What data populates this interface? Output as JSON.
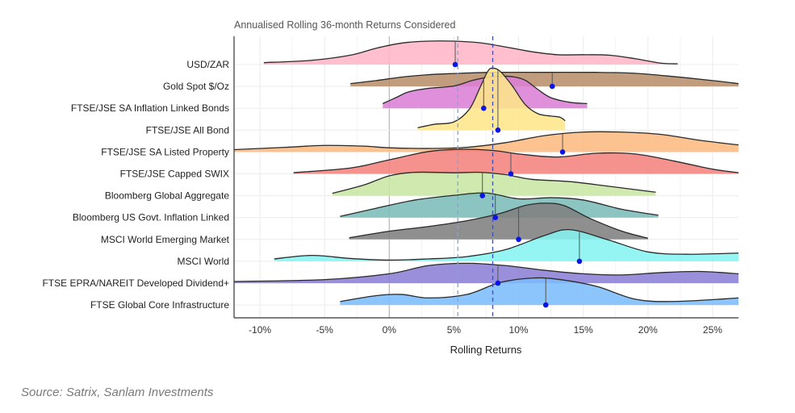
{
  "chart_data": {
    "type": "ridgeline",
    "subtitle": "Annualised Rolling 36-month Returns Considered",
    "xlabel": "Rolling Returns",
    "xlim": [
      -12,
      27
    ],
    "x_ticks": [
      -10,
      -5,
      0,
      5,
      10,
      15,
      20,
      25
    ],
    "x_tick_labels": [
      "-10%",
      "-5%",
      "0%",
      "5%",
      "10%",
      "15%",
      "20%",
      "25%"
    ],
    "grid": true,
    "reference_lines": [
      {
        "name": "reference-line-light",
        "x": 5.3,
        "style": "dashed",
        "color": "#7fa6d8"
      },
      {
        "name": "reference-line-dark",
        "x": 8.0,
        "style": "dashed",
        "color": "#3f4fb0"
      }
    ],
    "series": [
      {
        "name": "USD/ZAR",
        "color": "#ffb6c8",
        "mean": 5.1,
        "density": [
          [
            -9.7,
            0.08
          ],
          [
            -6,
            0.18
          ],
          [
            -3,
            0.4
          ],
          [
            -1,
            0.7
          ],
          [
            1,
            0.92
          ],
          [
            3,
            1.0
          ],
          [
            5,
            1.0
          ],
          [
            7,
            0.93
          ],
          [
            9,
            0.75
          ],
          [
            11,
            0.55
          ],
          [
            13,
            0.42
          ],
          [
            15,
            0.42
          ],
          [
            17,
            0.4
          ],
          [
            19,
            0.25
          ],
          [
            21,
            0.06
          ],
          [
            22.3,
            0.03
          ]
        ]
      },
      {
        "name": "Gold Spot $/Oz",
        "color": "#b8906c",
        "mean": 12.6,
        "density": [
          [
            -3,
            0.12
          ],
          [
            -1,
            0.25
          ],
          [
            1,
            0.4
          ],
          [
            3,
            0.5
          ],
          [
            5,
            0.55
          ],
          [
            8,
            0.6
          ],
          [
            12,
            0.6
          ],
          [
            16,
            0.6
          ],
          [
            19,
            0.56
          ],
          [
            22,
            0.42
          ],
          [
            25,
            0.25
          ],
          [
            27,
            0.12
          ]
        ]
      },
      {
        "name": "FTSE/JSE SA Inflation Linked Bonds",
        "color": "#dc7fd6",
        "mean": 7.3,
        "density": [
          [
            -0.5,
            0.2
          ],
          [
            0.5,
            0.45
          ],
          [
            1.5,
            0.7
          ],
          [
            3,
            0.85
          ],
          [
            5,
            0.95
          ],
          [
            6.5,
            1.2
          ],
          [
            8,
            1.35
          ],
          [
            9.5,
            1.35
          ],
          [
            10.5,
            1.2
          ],
          [
            11.5,
            0.8
          ],
          [
            12.5,
            0.45
          ],
          [
            14,
            0.25
          ],
          [
            15.3,
            0.2
          ]
        ]
      },
      {
        "name": "FTSE/JSE All Bond",
        "color": "#fde68a",
        "mean": 8.4,
        "density": [
          [
            2.2,
            0.1
          ],
          [
            3.5,
            0.25
          ],
          [
            5,
            0.35
          ],
          [
            6.2,
            0.9
          ],
          [
            7,
            1.8
          ],
          [
            7.6,
            2.5
          ],
          [
            8,
            2.65
          ],
          [
            8.6,
            2.5
          ],
          [
            9.5,
            1.9
          ],
          [
            10.5,
            1.1
          ],
          [
            11.5,
            0.7
          ],
          [
            12.5,
            0.6
          ],
          [
            13.2,
            0.55
          ],
          [
            13.6,
            0.4
          ]
        ]
      },
      {
        "name": "FTSE/JSE SA Listed Property",
        "color": "#fcba80",
        "mean": 13.4,
        "density": [
          [
            -12,
            0.1
          ],
          [
            -8,
            0.2
          ],
          [
            -5,
            0.28
          ],
          [
            -2,
            0.25
          ],
          [
            0,
            0.18
          ],
          [
            3,
            0.15
          ],
          [
            6,
            0.2
          ],
          [
            9,
            0.4
          ],
          [
            12,
            0.7
          ],
          [
            15,
            0.85
          ],
          [
            18,
            0.85
          ],
          [
            21,
            0.75
          ],
          [
            24,
            0.5
          ],
          [
            27,
            0.3
          ]
        ]
      },
      {
        "name": "FTSE/JSE Capped SWIX",
        "color": "#f4837e",
        "mean": 9.4,
        "density": [
          [
            -7.4,
            0.05
          ],
          [
            -3,
            0.25
          ],
          [
            0,
            0.6
          ],
          [
            3,
            0.95
          ],
          [
            5.5,
            1.05
          ],
          [
            8,
            1.0
          ],
          [
            10,
            0.85
          ],
          [
            13,
            0.72
          ],
          [
            16,
            0.88
          ],
          [
            19,
            0.85
          ],
          [
            22,
            0.55
          ],
          [
            25,
            0.2
          ],
          [
            27,
            0.05
          ]
        ]
      },
      {
        "name": "Bloomberg Global Aggregate",
        "color": "#c8e6a4",
        "mean": 7.2,
        "density": [
          [
            -4.4,
            0.1
          ],
          [
            -2,
            0.45
          ],
          [
            0,
            0.85
          ],
          [
            2,
            1.0
          ],
          [
            5,
            0.98
          ],
          [
            7,
            1.0
          ],
          [
            9,
            0.9
          ],
          [
            11,
            0.7
          ],
          [
            14,
            0.6
          ],
          [
            17,
            0.4
          ],
          [
            20.6,
            0.15
          ]
        ]
      },
      {
        "name": "Bloomberg US Govt. Inflation Linked",
        "color": "#7bbcb8",
        "mean": 8.2,
        "density": [
          [
            -3.8,
            0.05
          ],
          [
            -1,
            0.4
          ],
          [
            2,
            0.75
          ],
          [
            5,
            0.95
          ],
          [
            7.5,
            1.05
          ],
          [
            10,
            0.8
          ],
          [
            12.5,
            0.85
          ],
          [
            15,
            0.75
          ],
          [
            18,
            0.35
          ],
          [
            20.8,
            0.1
          ]
        ]
      },
      {
        "name": "MSCI World Emerging Market",
        "color": "#7f7f7f",
        "mean": 10.0,
        "density": [
          [
            -3.1,
            0.07
          ],
          [
            0,
            0.35
          ],
          [
            3,
            0.55
          ],
          [
            6,
            0.8
          ],
          [
            8.5,
            1.1
          ],
          [
            10.5,
            1.45
          ],
          [
            12,
            1.55
          ],
          [
            13.5,
            1.45
          ],
          [
            15.5,
            0.9
          ],
          [
            18,
            0.35
          ],
          [
            20,
            0.05
          ]
        ]
      },
      {
        "name": "MSCI World",
        "color": "#86f4f0",
        "mean": 14.7,
        "density": [
          [
            -8.9,
            0.1
          ],
          [
            -6,
            0.25
          ],
          [
            -3,
            0.12
          ],
          [
            0,
            0.05
          ],
          [
            3,
            0.1
          ],
          [
            6,
            0.2
          ],
          [
            9,
            0.5
          ],
          [
            12,
            1.1
          ],
          [
            14,
            1.35
          ],
          [
            17,
            0.9
          ],
          [
            20,
            0.4
          ],
          [
            23,
            0.3
          ],
          [
            27,
            0.35
          ]
        ]
      },
      {
        "name": "FTSE EPRA/NAREIT Developed Dividend+",
        "color": "#8c7fd6",
        "mean": 8.4,
        "density": [
          [
            -12,
            0.07
          ],
          [
            -5,
            0.15
          ],
          [
            0,
            0.4
          ],
          [
            3,
            0.75
          ],
          [
            6,
            0.85
          ],
          [
            9,
            0.75
          ],
          [
            12,
            0.55
          ],
          [
            15,
            0.4
          ],
          [
            18,
            0.35
          ],
          [
            21,
            0.45
          ],
          [
            24,
            0.5
          ],
          [
            27,
            0.4
          ]
        ]
      },
      {
        "name": "FTSE Global Core Infrastructure",
        "color": "#7cbcfc",
        "mean": 12.1,
        "density": [
          [
            -3.8,
            0.15
          ],
          [
            -1,
            0.4
          ],
          [
            1,
            0.45
          ],
          [
            3,
            0.3
          ],
          [
            6,
            0.45
          ],
          [
            8.5,
            0.95
          ],
          [
            11,
            1.15
          ],
          [
            13,
            1.1
          ],
          [
            16,
            0.8
          ],
          [
            19,
            0.25
          ],
          [
            22,
            0.15
          ],
          [
            27,
            0.3
          ]
        ]
      }
    ]
  },
  "footer": {
    "source": "Source: Satrix, Sanlam Investments"
  }
}
